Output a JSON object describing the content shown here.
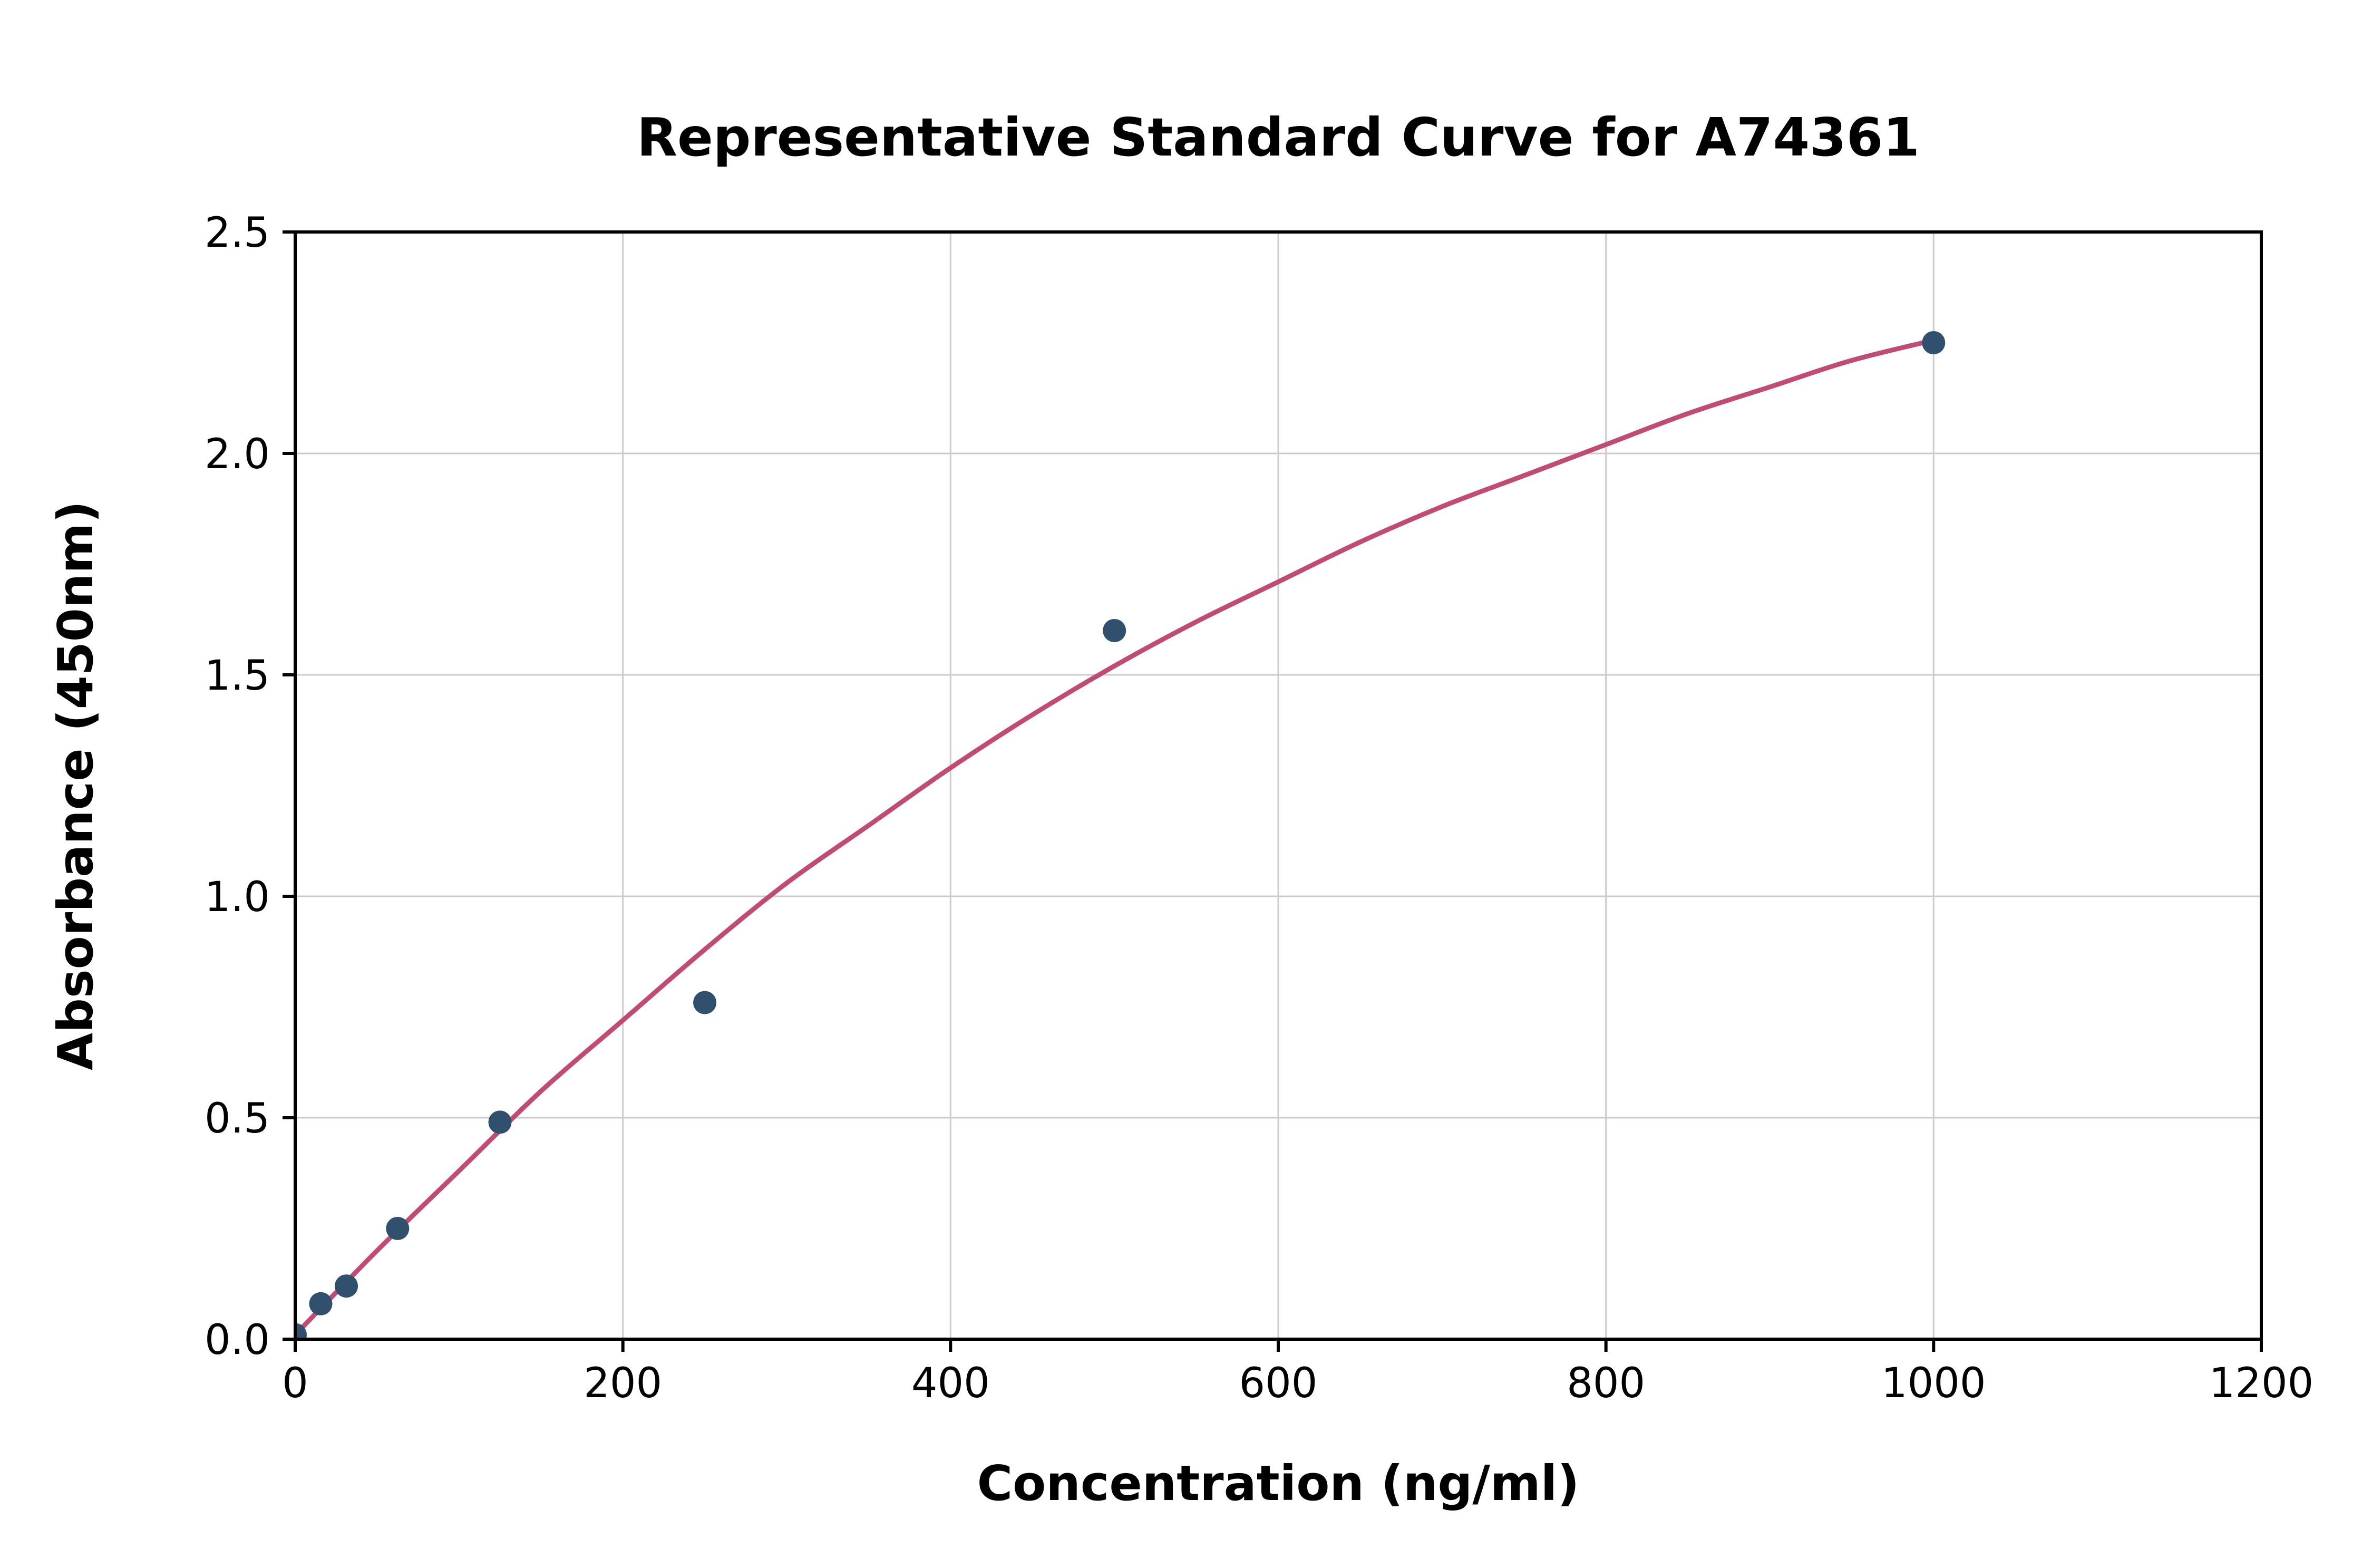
{
  "chart_data": {
    "type": "scatter",
    "title": "Representative Standard Curve for A74361",
    "xlabel": "Concentration (ng/ml)",
    "ylabel": "Absorbance (450nm)",
    "xlim": [
      0,
      1200
    ],
    "ylim": [
      0,
      2.5
    ],
    "x_ticks": [
      0,
      200,
      400,
      600,
      800,
      1000,
      1200
    ],
    "x_tick_labels": [
      "0",
      "200",
      "400",
      "600",
      "800",
      "1000",
      "1200"
    ],
    "y_ticks": [
      0.0,
      0.5,
      1.0,
      1.5,
      2.0,
      2.5
    ],
    "y_tick_labels": [
      "0.0",
      "0.5",
      "1.0",
      "1.5",
      "2.0",
      "2.5"
    ],
    "grid": true,
    "legend": false,
    "points": [
      {
        "x": 0,
        "y": 0.01
      },
      {
        "x": 15.6,
        "y": 0.08
      },
      {
        "x": 31.25,
        "y": 0.12
      },
      {
        "x": 62.5,
        "y": 0.25
      },
      {
        "x": 125,
        "y": 0.49
      },
      {
        "x": 250,
        "y": 0.76
      },
      {
        "x": 500,
        "y": 1.6
      },
      {
        "x": 1000,
        "y": 2.25
      }
    ],
    "fit_curve": [
      [
        0,
        0.01
      ],
      [
        50,
        0.2
      ],
      [
        100,
        0.38
      ],
      [
        150,
        0.56
      ],
      [
        200,
        0.72
      ],
      [
        250,
        0.88
      ],
      [
        300,
        1.03
      ],
      [
        350,
        1.16
      ],
      [
        400,
        1.29
      ],
      [
        450,
        1.41
      ],
      [
        500,
        1.52
      ],
      [
        550,
        1.62
      ],
      [
        600,
        1.71
      ],
      [
        650,
        1.8
      ],
      [
        700,
        1.88
      ],
      [
        750,
        1.95
      ],
      [
        800,
        2.02
      ],
      [
        850,
        2.09
      ],
      [
        900,
        2.15
      ],
      [
        950,
        2.21
      ],
      [
        1005,
        2.26
      ]
    ],
    "point_color": "#31506e",
    "curve_color": "#c04c76",
    "grid_color": "#cccccc",
    "axis_color": "#000000",
    "background": "#ffffff"
  }
}
